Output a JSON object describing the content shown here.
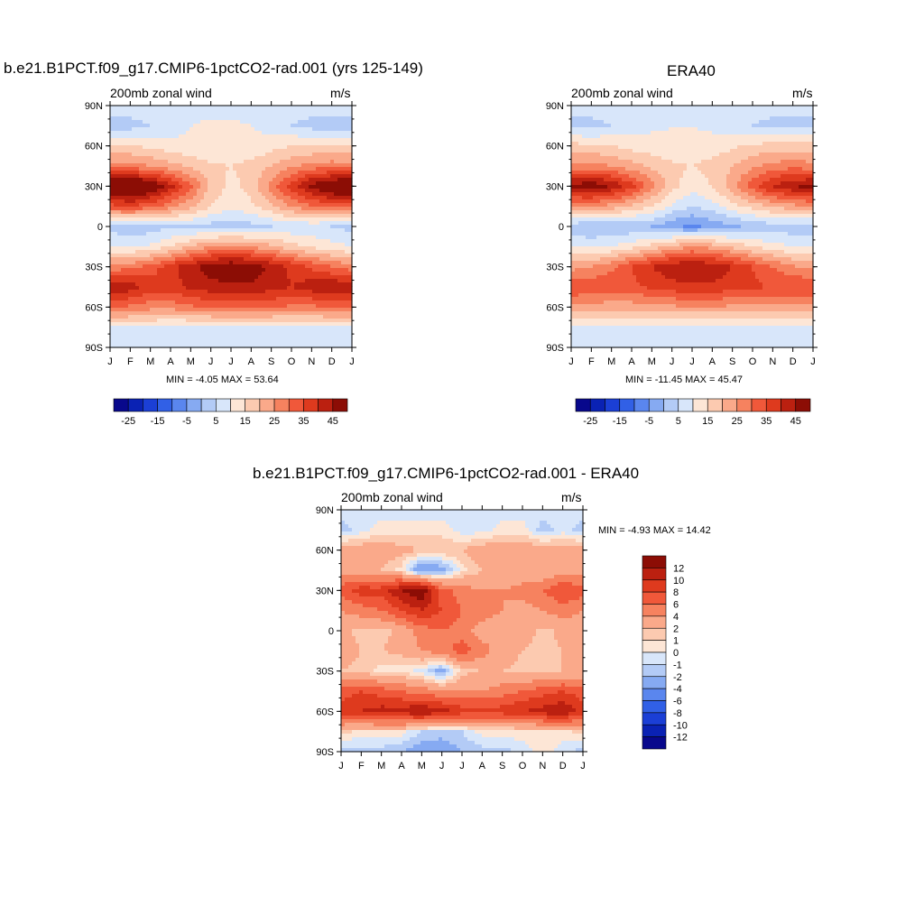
{
  "panels": [
    {
      "title": "b.e21.B1PCT.f09_g17.CMIP6-1pctCO2-rad.001 (yrs 125-149)",
      "left_label": "200mb zonal wind",
      "right_label": "m/s",
      "minmax": "MIN =  -4.05 MAX =  53.64"
    },
    {
      "title": "ERA40",
      "left_label": "200mb zonal wind",
      "right_label": "m/s",
      "minmax": "MIN =  -11.45 MAX =  45.47"
    },
    {
      "title": "b.e21.B1PCT.f09_g17.CMIP6-1pctCO2-rad.001 - ERA40",
      "left_label": "200mb zonal wind",
      "right_label": "m/s",
      "minmax": "MIN =  -4.93 MAX =  14.42"
    }
  ],
  "colorbars": {
    "top": {
      "labels": [
        "-25",
        "-15",
        "-5",
        "5",
        "15",
        "25",
        "35",
        "45"
      ],
      "colors": [
        "#08088c",
        "#0a22b4",
        "#1b3fd6",
        "#3160e6",
        "#5a86ee",
        "#86aaf2",
        "#b3cbf6",
        "#d8e6fa",
        "#fde6d6",
        "#fccab0",
        "#faa98a",
        "#f6825f",
        "#f0583a",
        "#de3a1e",
        "#bb2010",
        "#8c0d05"
      ]
    },
    "diff": {
      "labels": [
        "12",
        "10",
        "8",
        "6",
        "4",
        "2",
        "1",
        "0",
        "-1",
        "-2",
        "-4",
        "-6",
        "-8",
        "-10",
        "-12"
      ],
      "colors": [
        "#8c0d05",
        "#bb2010",
        "#de3a1e",
        "#f0583a",
        "#f6825f",
        "#faa98a",
        "#fccab0",
        "#fde6d6",
        "#d8e6fa",
        "#b3cbf6",
        "#86aaf2",
        "#5a86ee",
        "#3160e6",
        "#1b3fd6",
        "#0a22b4",
        "#08088c"
      ]
    }
  },
  "chart_data": [
    {
      "type": "heatmap",
      "title": "b.e21.B1PCT.f09_g17.CMIP6-1pctCO2-rad.001 (yrs 125-149)",
      "variable": "200mb zonal wind",
      "units": "m/s",
      "x_tick_labels": [
        "J",
        "F",
        "M",
        "A",
        "M",
        "J",
        "J",
        "A",
        "S",
        "O",
        "N",
        "D",
        "J"
      ],
      "y_tick_labels": [
        "90N",
        "60N",
        "30N",
        "0",
        "30S",
        "60S",
        "90S"
      ],
      "x": [
        "J",
        "F",
        "M",
        "A",
        "M",
        "J",
        "J",
        "A",
        "S",
        "O",
        "N",
        "D",
        "J"
      ],
      "y": [
        90,
        75,
        60,
        45,
        30,
        15,
        0,
        -15,
        -30,
        -45,
        -60,
        -75,
        -90
      ],
      "levels": [
        -30,
        -25,
        -20,
        -15,
        -10,
        -5,
        0,
        5,
        10,
        15,
        20,
        25,
        30,
        35,
        40,
        45,
        50
      ],
      "z": [
        [
          3,
          3,
          3,
          3,
          3,
          3,
          3,
          3,
          3,
          3,
          3,
          3,
          3
        ],
        [
          -2,
          -2,
          0,
          2,
          5,
          6,
          6,
          5,
          3,
          0,
          -2,
          -2,
          -2
        ],
        [
          10,
          10,
          9,
          7,
          6,
          5,
          5,
          6,
          8,
          10,
          10,
          10,
          10
        ],
        [
          22,
          22,
          20,
          17,
          14,
          11,
          10,
          12,
          15,
          19,
          22,
          23,
          22
        ],
        [
          50,
          53,
          46,
          37,
          26,
          14,
          8,
          12,
          22,
          33,
          42,
          48,
          50
        ],
        [
          28,
          30,
          27,
          22,
          16,
          10,
          6,
          9,
          14,
          20,
          24,
          27,
          28
        ],
        [
          -2,
          -4,
          -3,
          -1,
          -1,
          -2,
          -3,
          -2,
          0,
          1,
          1,
          0,
          -2
        ],
        [
          5,
          5,
          6,
          10,
          15,
          20,
          22,
          20,
          16,
          12,
          9,
          7,
          5
        ],
        [
          22,
          23,
          27,
          33,
          39,
          43,
          45,
          43,
          39,
          34,
          29,
          25,
          22
        ],
        [
          40,
          38,
          33,
          33,
          36,
          38,
          39,
          39,
          37,
          35,
          38,
          40,
          40
        ],
        [
          25,
          24,
          22,
          22,
          24,
          26,
          27,
          27,
          26,
          24,
          24,
          25,
          25
        ],
        [
          5,
          5,
          4,
          3,
          3,
          3,
          3,
          3,
          3,
          3,
          4,
          5,
          5
        ],
        [
          0,
          0,
          0,
          0,
          0,
          0,
          0,
          0,
          0,
          0,
          0,
          0,
          0
        ]
      ]
    },
    {
      "type": "heatmap",
      "title": "ERA40",
      "variable": "200mb zonal wind",
      "units": "m/s",
      "x_tick_labels": [
        "J",
        "F",
        "M",
        "A",
        "M",
        "J",
        "J",
        "A",
        "S",
        "O",
        "N",
        "D",
        "J"
      ],
      "y_tick_labels": [
        "90N",
        "60N",
        "30N",
        "0",
        "30S",
        "60S",
        "90S"
      ],
      "x": [
        "J",
        "F",
        "M",
        "A",
        "M",
        "J",
        "J",
        "A",
        "S",
        "O",
        "N",
        "D",
        "J"
      ],
      "y": [
        90,
        75,
        60,
        45,
        30,
        15,
        0,
        -15,
        -30,
        -45,
        -60,
        -75,
        -90
      ],
      "levels": [
        -30,
        -25,
        -20,
        -15,
        -10,
        -5,
        0,
        5,
        10,
        15,
        20,
        25,
        30,
        35,
        40,
        45,
        50
      ],
      "z": [
        [
          3,
          3,
          3,
          3,
          3,
          3,
          3,
          3,
          3,
          3,
          3,
          3,
          3
        ],
        [
          -2,
          -2,
          0,
          2,
          4,
          5,
          5,
          4,
          2,
          0,
          -2,
          -2,
          -2
        ],
        [
          12,
          11,
          10,
          8,
          7,
          6,
          6,
          7,
          9,
          11,
          12,
          12,
          12
        ],
        [
          22,
          22,
          20,
          17,
          14,
          11,
          10,
          12,
          15,
          19,
          22,
          23,
          22
        ],
        [
          42,
          44,
          40,
          32,
          22,
          12,
          7,
          10,
          18,
          28,
          36,
          40,
          42
        ],
        [
          20,
          20,
          18,
          14,
          10,
          4,
          0,
          3,
          8,
          12,
          16,
          18,
          20
        ],
        [
          -4,
          -5,
          -5,
          -4,
          -5,
          -9,
          -11,
          -9,
          -6,
          -4,
          -3,
          -3,
          -4
        ],
        [
          4,
          4,
          5,
          8,
          12,
          17,
          20,
          18,
          14,
          10,
          7,
          5,
          4
        ],
        [
          18,
          20,
          24,
          30,
          35,
          39,
          40,
          39,
          35,
          30,
          25,
          21,
          18
        ],
        [
          30,
          29,
          28,
          29,
          31,
          33,
          34,
          34,
          32,
          31,
          30,
          30,
          30
        ],
        [
          18,
          18,
          17,
          17,
          18,
          19,
          20,
          20,
          19,
          18,
          18,
          18,
          18
        ],
        [
          3,
          3,
          3,
          3,
          3,
          3,
          3,
          3,
          3,
          3,
          3,
          3,
          3
        ],
        [
          0,
          0,
          0,
          0,
          0,
          0,
          0,
          0,
          0,
          0,
          0,
          0,
          0
        ]
      ]
    },
    {
      "type": "heatmap",
      "title": "b.e21.B1PCT.f09_g17.CMIP6-1pctCO2-rad.001 - ERA40",
      "variable": "200mb zonal wind",
      "units": "m/s",
      "x_tick_labels": [
        "J",
        "F",
        "M",
        "A",
        "M",
        "J",
        "J",
        "A",
        "S",
        "O",
        "N",
        "D",
        "J"
      ],
      "y_tick_labels": [
        "90N",
        "60N",
        "30N",
        "0",
        "30S",
        "60S",
        "90S"
      ],
      "x": [
        "J",
        "F",
        "M",
        "A",
        "M",
        "J",
        "J",
        "A",
        "S",
        "O",
        "N",
        "D",
        "J"
      ],
      "y": [
        90,
        75,
        60,
        45,
        30,
        15,
        0,
        -15,
        -30,
        -45,
        -60,
        -75,
        -90
      ],
      "levels": [
        -12,
        -10,
        -8,
        -6,
        -4,
        -2,
        -1,
        0,
        1,
        2,
        4,
        6,
        8,
        10,
        12
      ],
      "z": [
        [
          -0.5,
          -0.5,
          -0.5,
          -0.5,
          -0.5,
          -0.5,
          -0.5,
          -0.5,
          -0.5,
          -0.5,
          -0.5,
          -0.5,
          -0.5
        ],
        [
          -1.5,
          -0.5,
          0.5,
          0.5,
          0.5,
          0.5,
          -0.5,
          -0.5,
          0.5,
          0.5,
          -1.5,
          -0.5,
          -1.5
        ],
        [
          3,
          3,
          3,
          2.5,
          2,
          2,
          2,
          3,
          3,
          3,
          3,
          3,
          3
        ],
        [
          3,
          2.5,
          2,
          0.5,
          -4,
          -3,
          0.5,
          2,
          2,
          2,
          2,
          3,
          3
        ],
        [
          7,
          9,
          9,
          12,
          14,
          7,
          5,
          4,
          4,
          5,
          6,
          8,
          7
        ],
        [
          4,
          5,
          6,
          8,
          10,
          8,
          6,
          5,
          4,
          3,
          4,
          5,
          4
        ],
        [
          2.5,
          1.5,
          1.5,
          2.5,
          5,
          6,
          5,
          3,
          2.5,
          3,
          1.5,
          2.5,
          2.5
        ],
        [
          3,
          2,
          2,
          2.5,
          4,
          5,
          7,
          5,
          3,
          2,
          1.5,
          2,
          3
        ],
        [
          2,
          1.5,
          0.5,
          0.5,
          -0.5,
          -3,
          1.5,
          2,
          2,
          1.5,
          1.5,
          2,
          2
        ],
        [
          7,
          8,
          7,
          6,
          5,
          4,
          4,
          4,
          5,
          6,
          7,
          8,
          7
        ],
        [
          9,
          10,
          11,
          11,
          12,
          11,
          9,
          9,
          9,
          10,
          11,
          12,
          9
        ],
        [
          1.5,
          0.5,
          0.5,
          0.5,
          -1,
          -1.5,
          -1,
          0.5,
          0.5,
          0.5,
          0.5,
          0.5,
          1.5
        ],
        [
          -1.5,
          -1.5,
          -1.5,
          -2,
          -3,
          -3,
          -2,
          -1.5,
          -1.5,
          -0.5,
          0.5,
          -0.5,
          -1.5
        ]
      ]
    }
  ]
}
